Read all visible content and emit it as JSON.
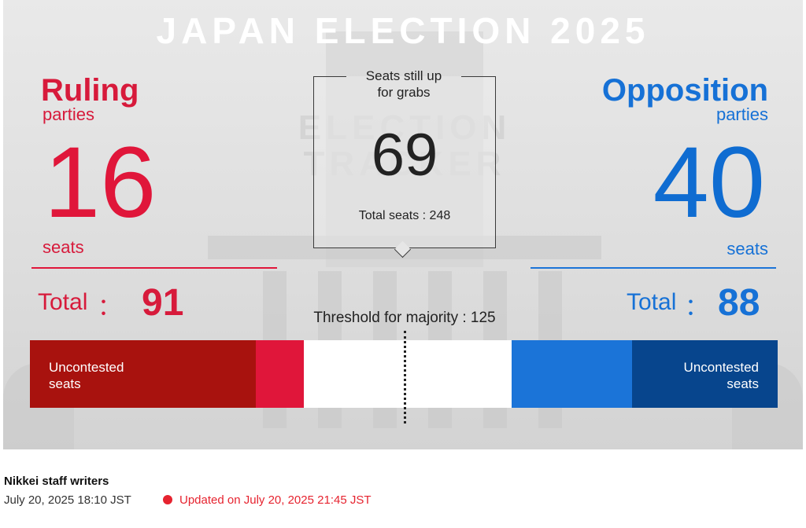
{
  "title": "JAPAN ELECTION 2025",
  "ruling": {
    "label": "Ruling",
    "sublabel": "parties",
    "seats_won": "16",
    "seats_unit": "seats",
    "total_label": "Total",
    "total_colon": "：",
    "total_value": "91",
    "color": "#e0163a"
  },
  "opposition": {
    "label": "Opposition",
    "sublabel": "parties",
    "seats_won": "40",
    "seats_unit": "seats",
    "total_label": "Total",
    "total_colon": "：",
    "total_value": "88",
    "color": "#1671d6"
  },
  "remaining": {
    "heading_line1": "Seats still up",
    "heading_line2": "for grabs",
    "value": "69",
    "total_text": "Total seats : 248"
  },
  "threshold_text": "Threshold for majority : 125",
  "seat_bar": {
    "total_seats": 248,
    "majority": 125,
    "segments": [
      {
        "key": "ruling_uncontested",
        "seats": 75,
        "color": "#a8120e",
        "label_line1": "Uncontested",
        "label_line2": "seats"
      },
      {
        "key": "ruling_won",
        "seats": 16,
        "color": "#e0163a"
      },
      {
        "key": "undecided",
        "seats": 69,
        "color": "#ffffff"
      },
      {
        "key": "opposition_won",
        "seats": 40,
        "color": "#1b74d8"
      },
      {
        "key": "opposition_uncontested",
        "seats": 48,
        "color": "#07458d",
        "label_line1": "Uncontested",
        "label_line2": "seats"
      }
    ]
  },
  "byline": "Nikkei staff writers",
  "published": "July 20, 2025 18:10 JST",
  "updated": "Updated on July 20, 2025 21:45 JST"
}
